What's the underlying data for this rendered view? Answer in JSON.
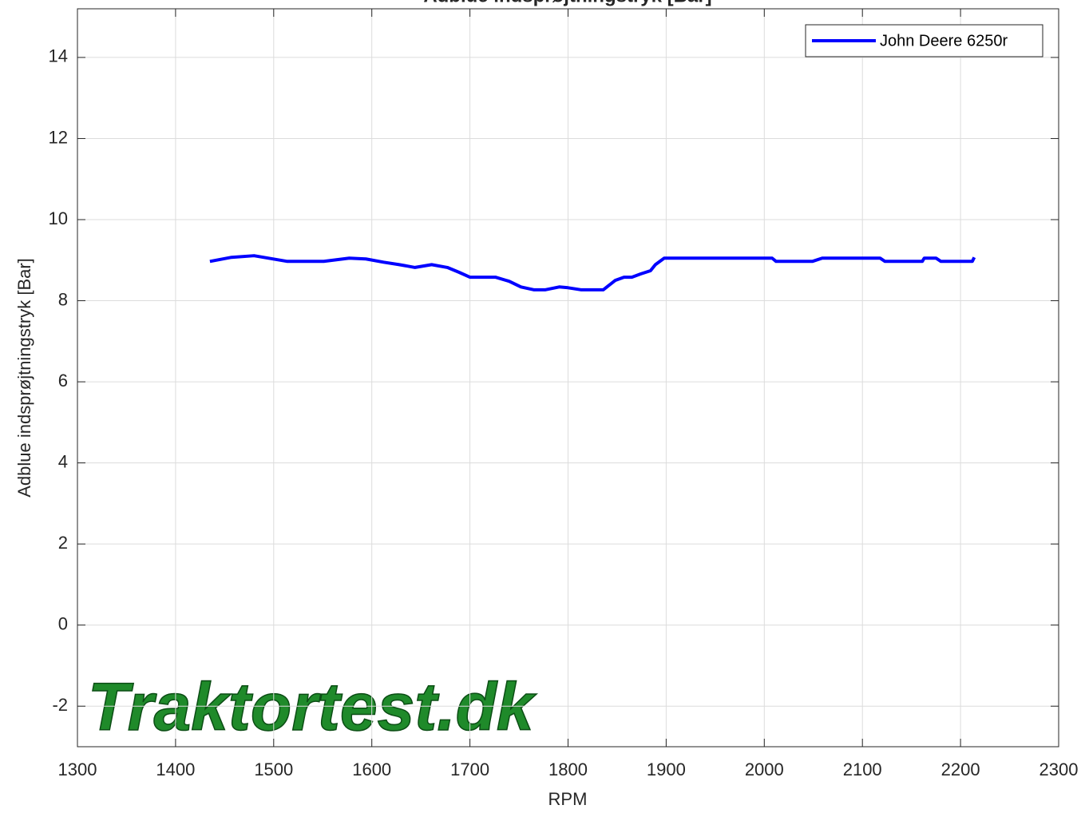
{
  "chart_data": {
    "type": "line",
    "title": "Adblue indsprøjtningstryk [Bar]",
    "xlabel": "RPM",
    "ylabel": "Adblue indsprøjtningstryk [Bar]",
    "watermark": "Traktortest.dk",
    "x": [
      1435,
      1457,
      1480,
      1514,
      1551,
      1577,
      1594,
      1612,
      1628,
      1644,
      1661,
      1677,
      1689,
      1700,
      1726,
      1740,
      1752,
      1765,
      1777,
      1791,
      1800,
      1813,
      1836,
      1848,
      1857,
      1865,
      1874,
      1884,
      1889,
      1898,
      2008,
      2012,
      2049,
      2059,
      2118,
      2123,
      2161,
      2163,
      2175,
      2180,
      2212,
      2214
    ],
    "series": [
      {
        "name": "John Deere 6250r",
        "color": "#0000ff",
        "values": [
          8.97,
          9.07,
          9.11,
          8.97,
          8.97,
          9.05,
          9.03,
          8.95,
          8.89,
          8.82,
          8.89,
          8.82,
          8.7,
          8.58,
          8.58,
          8.48,
          8.34,
          8.27,
          8.27,
          8.34,
          8.32,
          8.27,
          8.27,
          8.5,
          8.58,
          8.58,
          8.66,
          8.74,
          8.89,
          9.05,
          9.05,
          8.97,
          8.97,
          9.05,
          9.05,
          8.97,
          8.97,
          9.05,
          9.05,
          8.97,
          8.97,
          9.07
        ]
      }
    ],
    "xlim": [
      1300,
      2300
    ],
    "xticks": [
      1300,
      1400,
      1500,
      1600,
      1700,
      1800,
      1900,
      2000,
      2100,
      2200,
      2300
    ],
    "ylim": [
      -3,
      15.2
    ],
    "yticks": [
      -2,
      0,
      2,
      4,
      6,
      8,
      10,
      12,
      14
    ],
    "grid": true,
    "legend": "upper right"
  }
}
